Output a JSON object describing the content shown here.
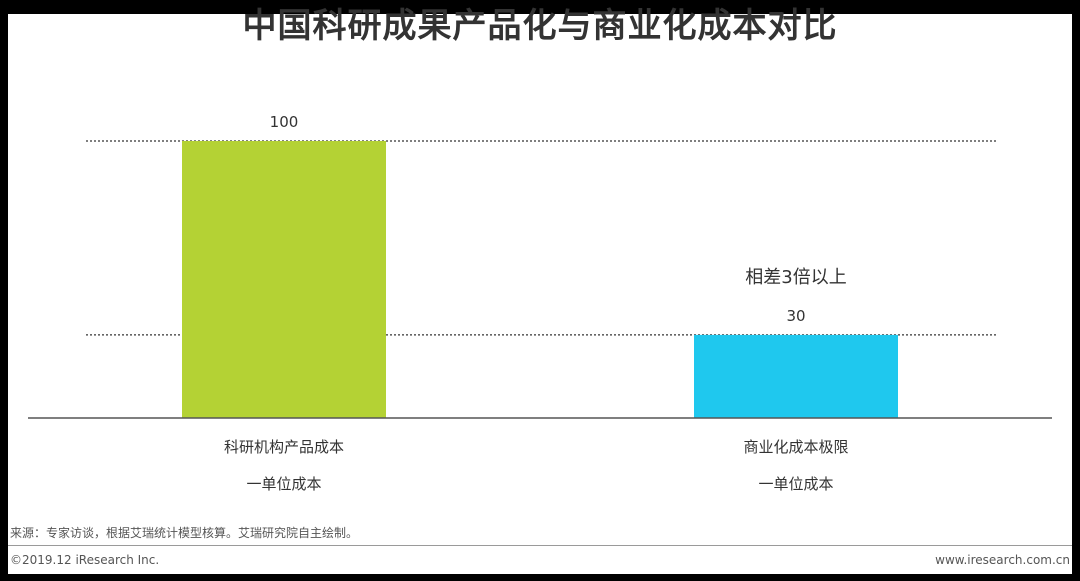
{
  "chart_data": {
    "type": "bar",
    "title": "中国科研成果产品化与商业化成本对比",
    "categories": [
      [
        "科研机构产品成本",
        "一单位成本"
      ],
      [
        "商业化成本极限",
        "一单位成本"
      ]
    ],
    "values": [
      100,
      30
    ],
    "value_labels": [
      "100",
      "30"
    ],
    "bar_colors": [
      "#b4d234",
      "#1fc8ee"
    ],
    "annotation": "相差3倍以上",
    "ylim": [
      0,
      100
    ],
    "reference_lines": [
      100,
      30
    ],
    "grid": false
  },
  "footer": {
    "source": "来源：专家访谈，根据艾瑞统计模型核算。艾瑞研究院自主绘制。",
    "copyright": "©2019.12 iResearch Inc.",
    "website": "www.iresearch.com.cn"
  }
}
